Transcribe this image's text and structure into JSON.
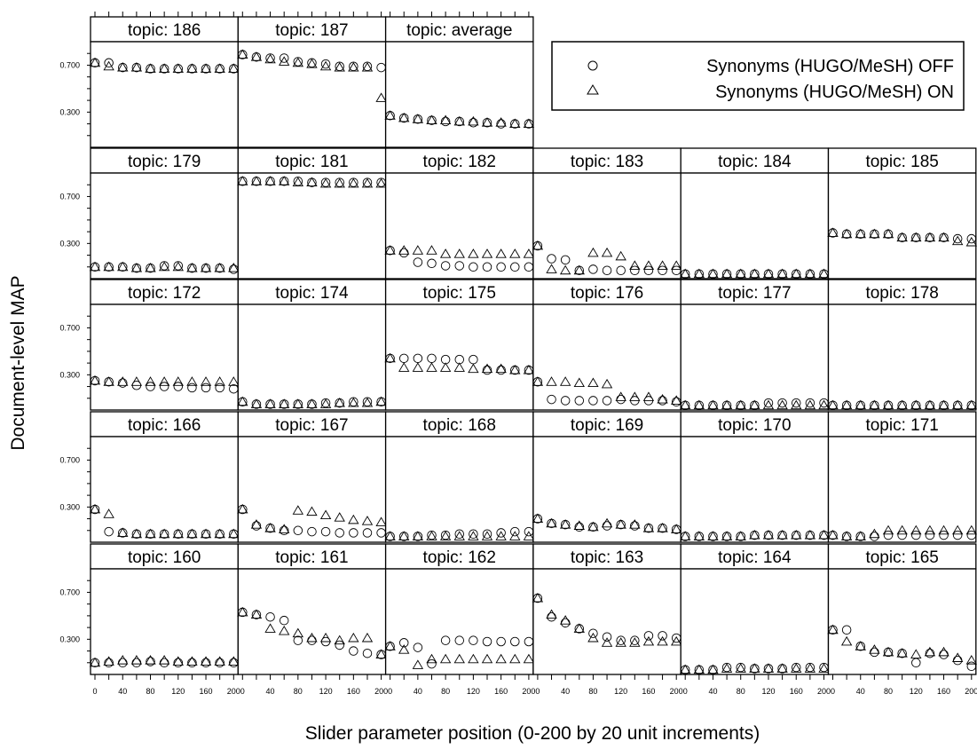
{
  "chart_data": {
    "type": "scatter",
    "xlabel": "Slider parameter position (0-200 by 20 unit increments)",
    "ylabel": "Document-level MAP",
    "x": [
      0,
      20,
      40,
      60,
      80,
      100,
      120,
      140,
      160,
      180,
      200
    ],
    "x_tick_labels": [
      "0",
      "40",
      "80",
      "120",
      "160",
      "200"
    ],
    "x_tick_values": [
      0,
      40,
      80,
      120,
      160,
      200
    ],
    "y_tick_labels": [
      "0.700",
      "0.300"
    ],
    "y_tick_values": [
      0.7,
      0.3
    ],
    "ylim": [
      0,
      0.9
    ],
    "legend": {
      "placement": "top-right",
      "entries": [
        {
          "marker": "circle",
          "label": "Synonyms (HUGO/MeSH) OFF"
        },
        {
          "marker": "triangle",
          "label": "Synonyms (HUGO/MeSH) ON"
        }
      ]
    },
    "panels": [
      {
        "title": "topic: 186",
        "off": [
          0.72,
          0.72,
          0.68,
          0.68,
          0.67,
          0.67,
          0.67,
          0.67,
          0.67,
          0.67,
          0.67
        ],
        "on": [
          0.72,
          0.69,
          0.68,
          0.68,
          0.67,
          0.67,
          0.67,
          0.67,
          0.67,
          0.67,
          0.67
        ]
      },
      {
        "title": "topic: 187",
        "off": [
          0.79,
          0.77,
          0.76,
          0.76,
          0.73,
          0.72,
          0.71,
          0.69,
          0.69,
          0.69,
          0.68
        ],
        "on": [
          0.79,
          0.77,
          0.75,
          0.73,
          0.72,
          0.71,
          0.69,
          0.68,
          0.68,
          0.68,
          0.42
        ]
      },
      {
        "title": "topic: average",
        "off": [
          0.27,
          0.25,
          0.24,
          0.23,
          0.22,
          0.22,
          0.21,
          0.21,
          0.2,
          0.2,
          0.2
        ],
        "on": [
          0.27,
          0.25,
          0.24,
          0.23,
          0.23,
          0.22,
          0.22,
          0.21,
          0.21,
          0.2,
          0.2
        ]
      },
      {
        "title": "topic: 179",
        "off": [
          0.1,
          0.1,
          0.1,
          0.09,
          0.09,
          0.11,
          0.11,
          0.09,
          0.09,
          0.09,
          0.08
        ],
        "on": [
          0.1,
          0.1,
          0.1,
          0.09,
          0.09,
          0.1,
          0.1,
          0.09,
          0.09,
          0.09,
          0.09
        ]
      },
      {
        "title": "topic: 181",
        "off": [
          0.83,
          0.83,
          0.83,
          0.83,
          0.83,
          0.82,
          0.82,
          0.82,
          0.82,
          0.82,
          0.82
        ],
        "on": [
          0.83,
          0.83,
          0.83,
          0.83,
          0.82,
          0.82,
          0.81,
          0.81,
          0.81,
          0.81,
          0.81
        ]
      },
      {
        "title": "topic: 182",
        "off": [
          0.24,
          0.22,
          0.14,
          0.13,
          0.11,
          0.11,
          0.1,
          0.1,
          0.1,
          0.1,
          0.1
        ],
        "on": [
          0.24,
          0.24,
          0.24,
          0.24,
          0.21,
          0.21,
          0.21,
          0.21,
          0.21,
          0.21,
          0.21
        ]
      },
      {
        "title": "topic: 183",
        "off": [
          0.28,
          0.17,
          0.16,
          0.07,
          0.08,
          0.07,
          0.07,
          0.07,
          0.07,
          0.07,
          0.07
        ],
        "on": [
          0.28,
          0.08,
          0.07,
          0.07,
          0.22,
          0.22,
          0.19,
          0.11,
          0.11,
          0.11,
          0.11
        ]
      },
      {
        "title": "topic: 184",
        "off": [
          0.04,
          0.04,
          0.04,
          0.04,
          0.04,
          0.04,
          0.04,
          0.04,
          0.04,
          0.04,
          0.04
        ],
        "on": [
          0.04,
          0.04,
          0.04,
          0.04,
          0.04,
          0.04,
          0.04,
          0.04,
          0.04,
          0.04,
          0.04
        ]
      },
      {
        "title": "topic: 185",
        "off": [
          0.39,
          0.38,
          0.38,
          0.38,
          0.38,
          0.35,
          0.35,
          0.35,
          0.35,
          0.34,
          0.34
        ],
        "on": [
          0.39,
          0.38,
          0.38,
          0.38,
          0.38,
          0.35,
          0.35,
          0.35,
          0.35,
          0.32,
          0.31
        ]
      },
      {
        "title": "topic: 172",
        "off": [
          0.25,
          0.24,
          0.23,
          0.21,
          0.2,
          0.2,
          0.2,
          0.19,
          0.19,
          0.19,
          0.18
        ],
        "on": [
          0.25,
          0.24,
          0.24,
          0.24,
          0.24,
          0.24,
          0.24,
          0.24,
          0.24,
          0.24,
          0.24
        ]
      },
      {
        "title": "topic: 174",
        "off": [
          0.07,
          0.05,
          0.05,
          0.05,
          0.05,
          0.05,
          0.06,
          0.06,
          0.07,
          0.07,
          0.07
        ],
        "on": [
          0.07,
          0.05,
          0.05,
          0.05,
          0.05,
          0.05,
          0.05,
          0.06,
          0.06,
          0.06,
          0.07
        ]
      },
      {
        "title": "topic: 175",
        "off": [
          0.44,
          0.44,
          0.44,
          0.44,
          0.43,
          0.43,
          0.43,
          0.34,
          0.34,
          0.34,
          0.34
        ],
        "on": [
          0.44,
          0.36,
          0.36,
          0.36,
          0.36,
          0.36,
          0.35,
          0.35,
          0.35,
          0.34,
          0.34
        ]
      },
      {
        "title": "topic: 176",
        "off": [
          0.24,
          0.09,
          0.08,
          0.08,
          0.08,
          0.08,
          0.09,
          0.08,
          0.08,
          0.08,
          0.07
        ],
        "on": [
          0.24,
          0.24,
          0.24,
          0.23,
          0.23,
          0.22,
          0.11,
          0.11,
          0.11,
          0.09,
          0.08
        ]
      },
      {
        "title": "topic: 177",
        "off": [
          0.04,
          0.04,
          0.04,
          0.04,
          0.04,
          0.04,
          0.06,
          0.06,
          0.06,
          0.06,
          0.06
        ],
        "on": [
          0.04,
          0.04,
          0.04,
          0.04,
          0.04,
          0.04,
          0.04,
          0.04,
          0.04,
          0.04,
          0.04
        ]
      },
      {
        "title": "topic: 178",
        "off": [
          0.04,
          0.04,
          0.04,
          0.04,
          0.04,
          0.04,
          0.04,
          0.04,
          0.04,
          0.04,
          0.04
        ],
        "on": [
          0.04,
          0.04,
          0.04,
          0.04,
          0.04,
          0.04,
          0.04,
          0.04,
          0.04,
          0.04,
          0.04
        ]
      },
      {
        "title": "topic: 166",
        "off": [
          0.28,
          0.09,
          0.08,
          0.07,
          0.07,
          0.07,
          0.07,
          0.07,
          0.07,
          0.07,
          0.07
        ],
        "on": [
          0.28,
          0.24,
          0.08,
          0.07,
          0.07,
          0.07,
          0.07,
          0.07,
          0.07,
          0.07,
          0.07
        ]
      },
      {
        "title": "topic: 167",
        "off": [
          0.28,
          0.14,
          0.12,
          0.1,
          0.1,
          0.09,
          0.09,
          0.08,
          0.08,
          0.08,
          0.08
        ],
        "on": [
          0.28,
          0.15,
          0.12,
          0.11,
          0.27,
          0.26,
          0.23,
          0.21,
          0.19,
          0.18,
          0.17
        ]
      },
      {
        "title": "topic: 168",
        "off": [
          0.05,
          0.05,
          0.05,
          0.06,
          0.06,
          0.07,
          0.07,
          0.07,
          0.08,
          0.09,
          0.09
        ],
        "on": [
          0.05,
          0.05,
          0.05,
          0.05,
          0.05,
          0.05,
          0.05,
          0.05,
          0.05,
          0.05,
          0.05
        ]
      },
      {
        "title": "topic: 169",
        "off": [
          0.2,
          0.16,
          0.15,
          0.13,
          0.13,
          0.14,
          0.15,
          0.14,
          0.12,
          0.12,
          0.11
        ],
        "on": [
          0.2,
          0.16,
          0.15,
          0.14,
          0.13,
          0.16,
          0.15,
          0.15,
          0.12,
          0.12,
          0.11
        ]
      },
      {
        "title": "topic: 170",
        "off": [
          0.05,
          0.05,
          0.05,
          0.05,
          0.05,
          0.06,
          0.06,
          0.06,
          0.06,
          0.06,
          0.06
        ],
        "on": [
          0.05,
          0.05,
          0.05,
          0.05,
          0.05,
          0.06,
          0.06,
          0.06,
          0.06,
          0.06,
          0.06
        ]
      },
      {
        "title": "topic: 171",
        "off": [
          0.06,
          0.05,
          0.05,
          0.05,
          0.06,
          0.06,
          0.06,
          0.06,
          0.06,
          0.06,
          0.06
        ],
        "on": [
          0.06,
          0.05,
          0.05,
          0.07,
          0.1,
          0.1,
          0.1,
          0.1,
          0.1,
          0.1,
          0.1
        ]
      },
      {
        "title": "topic: 160",
        "off": [
          0.1,
          0.1,
          0.1,
          0.1,
          0.11,
          0.1,
          0.1,
          0.1,
          0.1,
          0.1,
          0.1
        ],
        "on": [
          0.1,
          0.11,
          0.12,
          0.12,
          0.12,
          0.12,
          0.11,
          0.11,
          0.11,
          0.11,
          0.11
        ]
      },
      {
        "title": "topic: 161",
        "off": [
          0.53,
          0.51,
          0.49,
          0.46,
          0.29,
          0.29,
          0.28,
          0.25,
          0.2,
          0.18,
          0.17
        ],
        "on": [
          0.53,
          0.51,
          0.39,
          0.37,
          0.35,
          0.31,
          0.31,
          0.29,
          0.31,
          0.31,
          0.17
        ]
      },
      {
        "title": "topic: 162",
        "off": [
          0.24,
          0.27,
          0.23,
          0.09,
          0.29,
          0.29,
          0.29,
          0.28,
          0.28,
          0.28,
          0.28
        ],
        "on": [
          0.24,
          0.21,
          0.08,
          0.13,
          0.13,
          0.13,
          0.13,
          0.13,
          0.13,
          0.13,
          0.13
        ]
      },
      {
        "title": "topic: 163",
        "off": [
          0.65,
          0.49,
          0.44,
          0.39,
          0.35,
          0.32,
          0.29,
          0.29,
          0.33,
          0.33,
          0.31
        ],
        "on": [
          0.65,
          0.51,
          0.46,
          0.39,
          0.31,
          0.27,
          0.27,
          0.27,
          0.28,
          0.28,
          0.28
        ]
      },
      {
        "title": "topic: 164",
        "off": [
          0.04,
          0.04,
          0.04,
          0.06,
          0.06,
          0.05,
          0.05,
          0.05,
          0.06,
          0.06,
          0.06
        ],
        "on": [
          0.04,
          0.04,
          0.04,
          0.05,
          0.05,
          0.05,
          0.05,
          0.05,
          0.05,
          0.05,
          0.05
        ]
      },
      {
        "title": "topic: 165",
        "off": [
          0.38,
          0.38,
          0.24,
          0.19,
          0.19,
          0.18,
          0.1,
          0.18,
          0.17,
          0.12,
          0.07
        ],
        "on": [
          0.38,
          0.28,
          0.24,
          0.21,
          0.19,
          0.18,
          0.17,
          0.19,
          0.19,
          0.14,
          0.12
        ]
      }
    ]
  }
}
